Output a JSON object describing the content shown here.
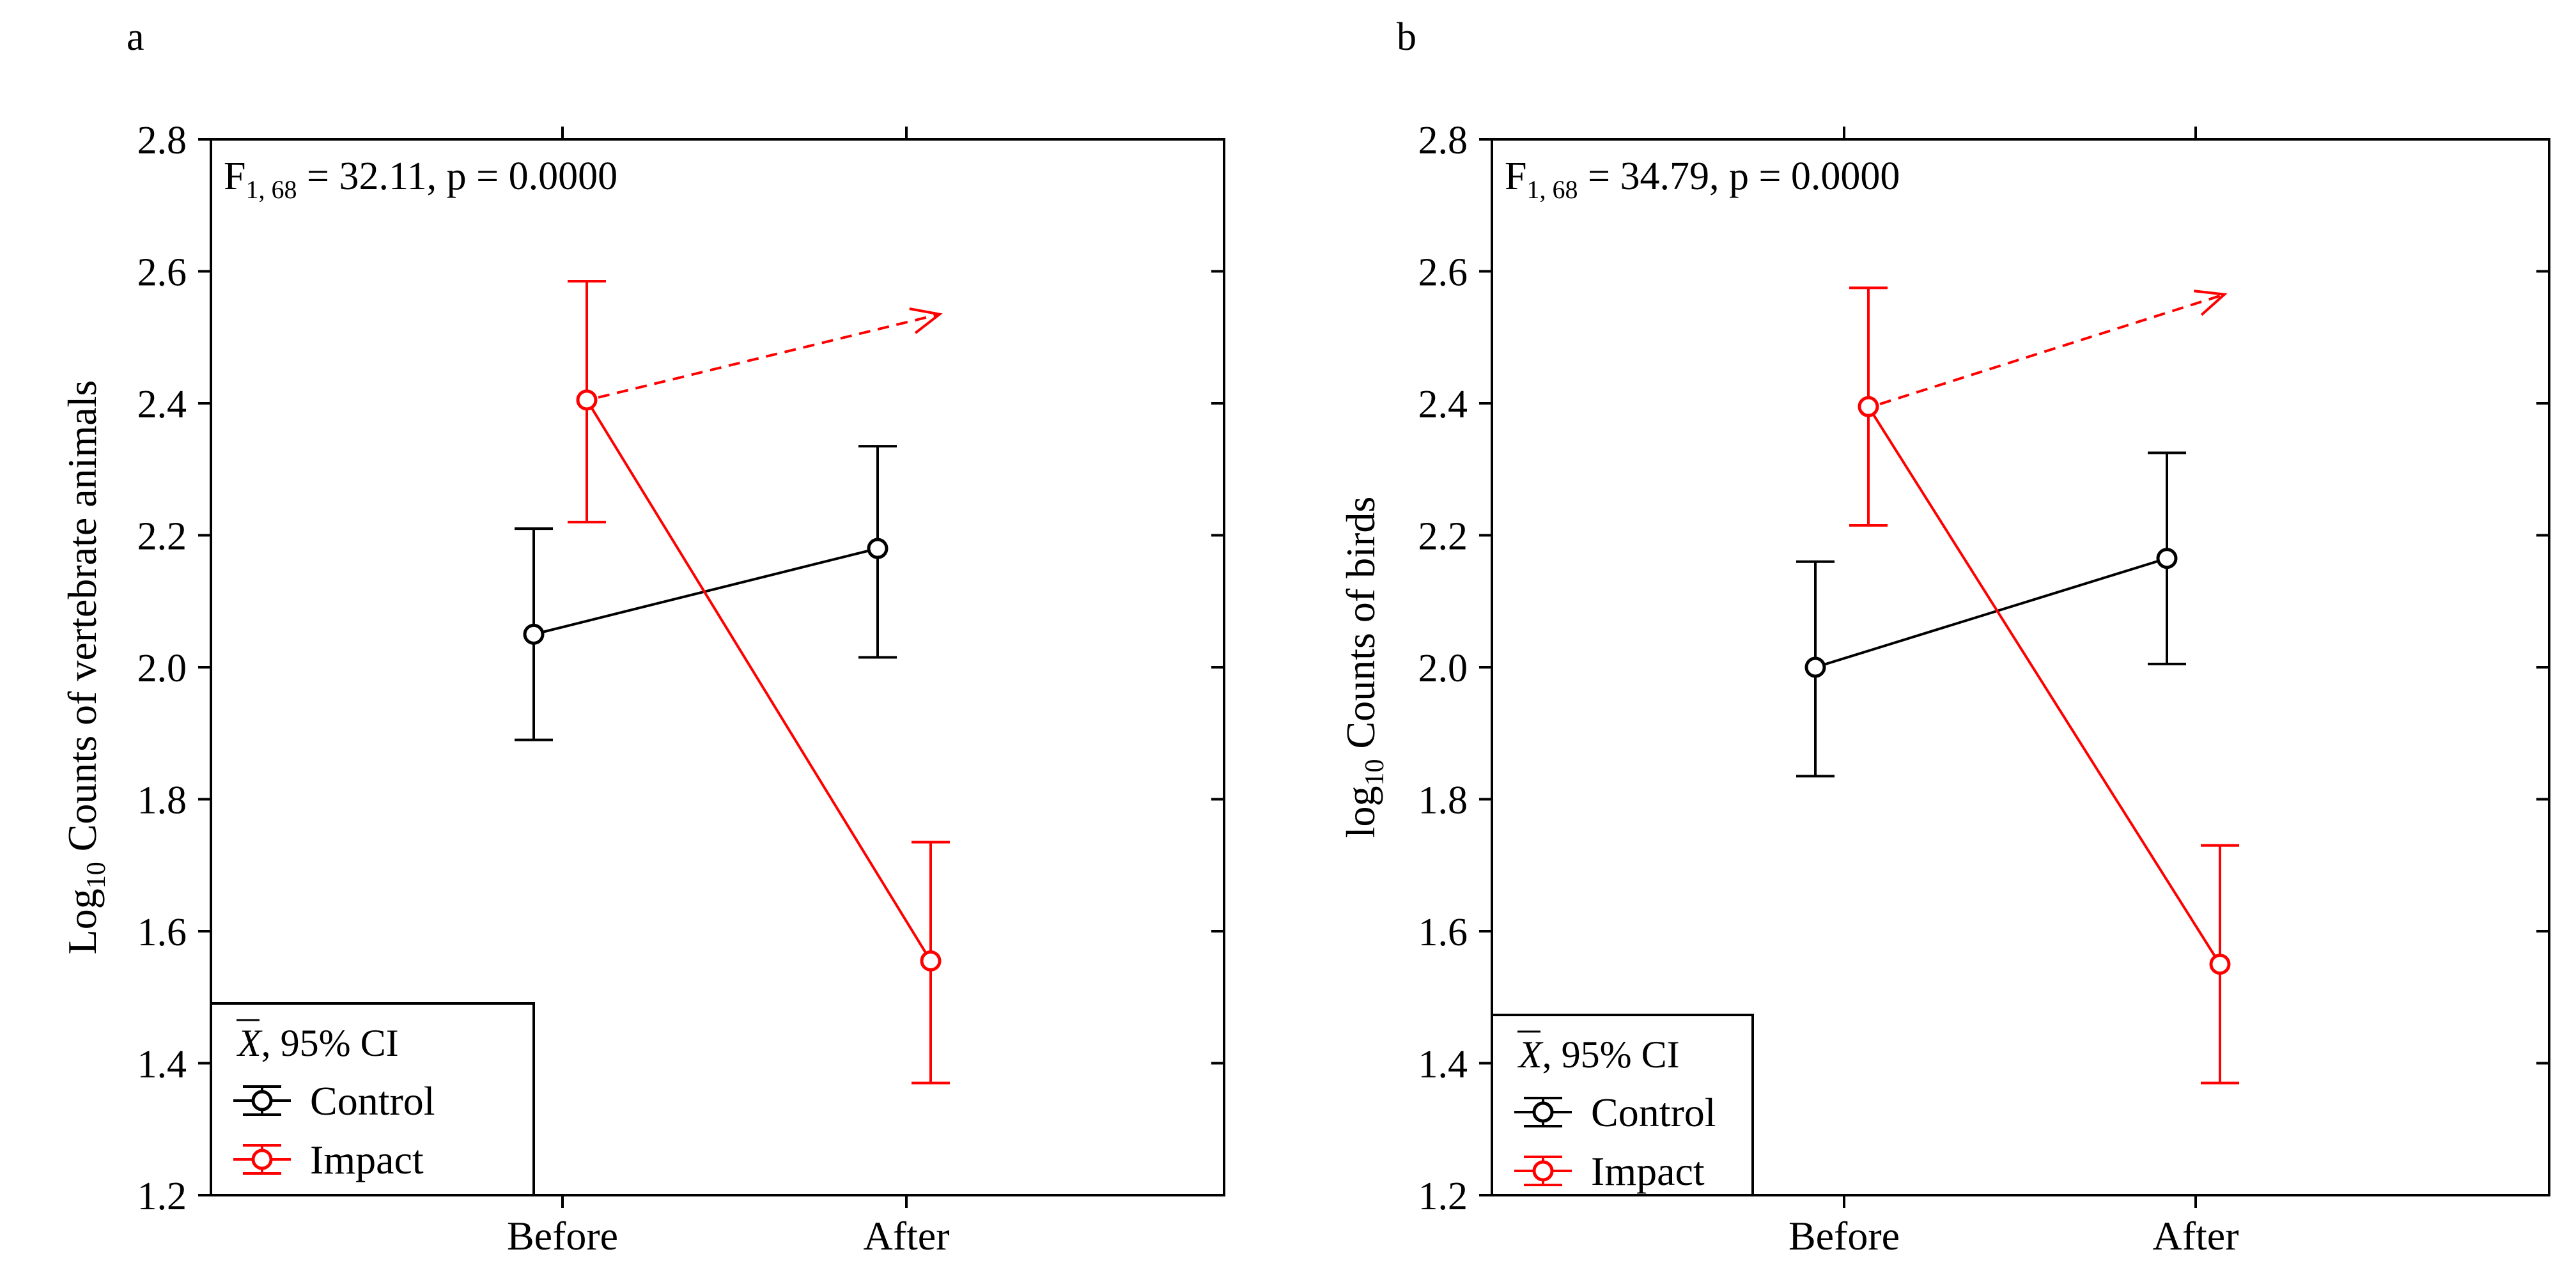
{
  "chart_data": [
    {
      "type": "line",
      "panel_label": "a",
      "stat": {
        "main": "F",
        "sub": "1, 68",
        "rest": " = 32.11, p = 0.0000"
      },
      "ylabel": {
        "pre": "Log",
        "sub": "10",
        "post": " Counts of vertebrate animals"
      },
      "xlabel": "",
      "categories": [
        "Before",
        "After"
      ],
      "ylim": [
        1.2,
        2.8
      ],
      "yticks": [
        "1.2",
        "1.4",
        "1.6",
        "1.8",
        "2.0",
        "2.2",
        "2.4",
        "2.6",
        "2.8"
      ],
      "series": [
        {
          "name": "Control",
          "color": "#000000",
          "values": [
            2.05,
            2.18
          ],
          "ci_low": [
            1.89,
            2.015
          ],
          "ci_high": [
            2.21,
            2.335
          ]
        },
        {
          "name": "Impact",
          "color": "#ff0000",
          "values": [
            2.405,
            1.555
          ],
          "ci_low": [
            2.22,
            1.37
          ],
          "ci_high": [
            2.585,
            1.735
          ]
        }
      ],
      "arrow": {
        "color": "#ff0000",
        "from": 2.405,
        "to": 2.535,
        "style": "dashed"
      },
      "legend": {
        "title_symbol": "X",
        "title_rest": ", 95% CI",
        "items": [
          "Control",
          "Impact"
        ],
        "placement": "bottom-left"
      }
    },
    {
      "type": "line",
      "panel_label": "b",
      "stat": {
        "main": "F",
        "sub": "1, 68",
        "rest": " = 34.79, p = 0.0000"
      },
      "ylabel": {
        "pre": "log",
        "sub": "10",
        "post": " Counts of birds"
      },
      "xlabel": "",
      "categories": [
        "Before",
        "After"
      ],
      "ylim": [
        1.2,
        2.8
      ],
      "yticks": [
        "1.2",
        "1.4",
        "1.6",
        "1.8",
        "2.0",
        "2.2",
        "2.4",
        "2.6",
        "2.8"
      ],
      "series": [
        {
          "name": "Control",
          "color": "#000000",
          "values": [
            2.0,
            2.165
          ],
          "ci_low": [
            1.835,
            2.005
          ],
          "ci_high": [
            2.16,
            2.325
          ]
        },
        {
          "name": "Impact",
          "color": "#ff0000",
          "values": [
            2.395,
            1.55
          ],
          "ci_low": [
            2.215,
            1.37
          ],
          "ci_high": [
            2.575,
            1.73
          ]
        }
      ],
      "arrow": {
        "color": "#ff0000",
        "from": 2.395,
        "to": 2.565,
        "style": "dashed"
      },
      "legend": {
        "title_symbol": "X",
        "title_rest": ", 95% CI",
        "items": [
          "Control",
          "Impact"
        ],
        "placement": "bottom-left"
      }
    }
  ]
}
